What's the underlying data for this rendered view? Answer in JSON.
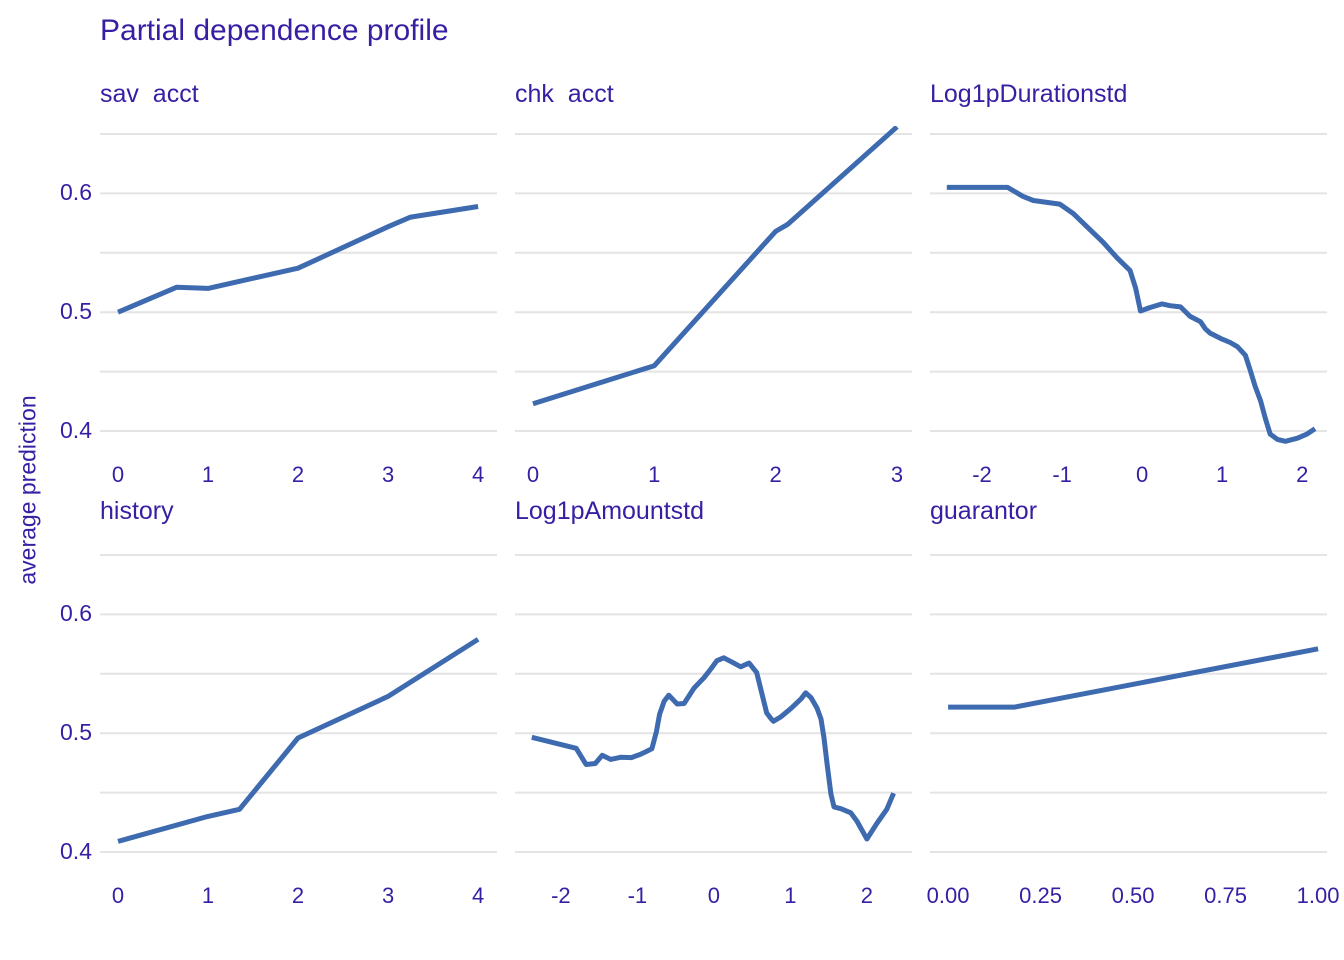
{
  "title": "Partial dependence profile",
  "y_axis_title": "average prediction",
  "colors": {
    "accent_text": "#371ea3",
    "line": "#3e6ab0",
    "grid": "#e4e4e4",
    "background": "#ffffff"
  },
  "axes": {
    "ylim": [
      0.379,
      0.6567
    ],
    "grid_y": [
      0.4,
      0.45,
      0.5,
      0.55,
      0.6,
      0.65
    ],
    "yticks": [
      {
        "value": 0.6,
        "label": "0.6"
      },
      {
        "value": 0.5,
        "label": "0.5"
      },
      {
        "value": 0.4,
        "label": "0.4"
      }
    ],
    "grid_on": true
  },
  "chart_data": [
    {
      "type": "line",
      "title": "sav  acct",
      "xlim": [
        -0.2,
        4.21
      ],
      "xticks": [
        {
          "value": 0,
          "label": "0"
        },
        {
          "value": 1,
          "label": "1"
        },
        {
          "value": 2,
          "label": "2"
        },
        {
          "value": 3,
          "label": "3"
        },
        {
          "value": 4,
          "label": "4"
        }
      ],
      "x": [
        0,
        0.65,
        1,
        2,
        3,
        3.25,
        4
      ],
      "y": [
        0.5,
        0.521,
        0.52,
        0.537,
        0.572,
        0.58,
        0.589
      ]
    },
    {
      "type": "line",
      "title": "chk  acct",
      "xlim": [
        -0.148,
        3.124
      ],
      "xticks": [
        {
          "value": 0,
          "label": "0"
        },
        {
          "value": 1,
          "label": "1"
        },
        {
          "value": 2,
          "label": "2"
        },
        {
          "value": 3,
          "label": "3"
        }
      ],
      "x": [
        0,
        1,
        2,
        2.1,
        3
      ],
      "y": [
        0.423,
        0.455,
        0.568,
        0.574,
        0.656
      ]
    },
    {
      "type": "line",
      "title": "Log1pDurationstd",
      "xlim": [
        -2.65,
        2.31
      ],
      "xticks": [
        {
          "value": -2,
          "label": "-2"
        },
        {
          "value": -1,
          "label": "-1"
        },
        {
          "value": 0,
          "label": "0"
        },
        {
          "value": 1,
          "label": "1"
        },
        {
          "value": 2,
          "label": "2"
        }
      ],
      "x": [
        -2.44,
        -1.68,
        -1.49,
        -1.36,
        -1.03,
        -0.86,
        -0.69,
        -0.49,
        -0.31,
        -0.15,
        -0.08,
        -0.02,
        0.1,
        0.25,
        0.35,
        0.48,
        0.6,
        0.73,
        0.79,
        0.85,
        0.98,
        1.1,
        1.19,
        1.29,
        1.35,
        1.41,
        1.48,
        1.54,
        1.6,
        1.69,
        1.79,
        1.94,
        2.06,
        2.16
      ],
      "y": [
        0.605,
        0.605,
        0.5975,
        0.594,
        0.591,
        0.583,
        0.572,
        0.559,
        0.5455,
        0.535,
        0.52,
        0.501,
        0.504,
        0.507,
        0.5055,
        0.5045,
        0.4965,
        0.492,
        0.486,
        0.4824,
        0.478,
        0.4745,
        0.471,
        0.4637,
        0.4513,
        0.438,
        0.4254,
        0.4105,
        0.3974,
        0.393,
        0.3914,
        0.394,
        0.3974,
        0.402
      ]
    },
    {
      "type": "line",
      "title": "history",
      "xlim": [
        -0.2,
        4.21
      ],
      "xticks": [
        {
          "value": 0,
          "label": "0"
        },
        {
          "value": 1,
          "label": "1"
        },
        {
          "value": 2,
          "label": "2"
        },
        {
          "value": 3,
          "label": "3"
        },
        {
          "value": 4,
          "label": "4"
        }
      ],
      "x": [
        0,
        1,
        1.35,
        2,
        3,
        4
      ],
      "y": [
        0.409,
        0.43,
        0.436,
        0.496,
        0.531,
        0.579
      ]
    },
    {
      "type": "line",
      "title": "Log1pAmountstd",
      "xlim": [
        -2.6,
        2.59
      ],
      "xticks": [
        {
          "value": -2,
          "label": "-2"
        },
        {
          "value": -1,
          "label": "-1"
        },
        {
          "value": 0,
          "label": "0"
        },
        {
          "value": 1,
          "label": "1"
        },
        {
          "value": 2,
          "label": "2"
        }
      ],
      "x": [
        -2.38,
        -1.8,
        -1.67,
        -1.55,
        -1.46,
        -1.35,
        -1.22,
        -1.08,
        -0.97,
        -0.88,
        -0.81,
        -0.75,
        -0.71,
        -0.65,
        -0.59,
        -0.48,
        -0.39,
        -0.26,
        -0.13,
        -0.04,
        0.04,
        0.13,
        0.26,
        0.35,
        0.46,
        0.56,
        0.69,
        0.75,
        0.78,
        0.88,
        1.01,
        1.14,
        1.2,
        1.27,
        1.35,
        1.4,
        1.44,
        1.48,
        1.53,
        1.57,
        1.66,
        1.79,
        1.87,
        2.0,
        2.13,
        2.26,
        2.35
      ],
      "y": [
        0.4966,
        0.4873,
        0.4737,
        0.4745,
        0.4814,
        0.478,
        0.4797,
        0.4795,
        0.482,
        0.4847,
        0.487,
        0.5017,
        0.516,
        0.527,
        0.532,
        0.5246,
        0.525,
        0.538,
        0.5466,
        0.554,
        0.561,
        0.5635,
        0.559,
        0.5559,
        0.559,
        0.551,
        0.517,
        0.512,
        0.51,
        0.514,
        0.521,
        0.529,
        0.534,
        0.53,
        0.521,
        0.512,
        0.496,
        0.474,
        0.449,
        0.438,
        0.4365,
        0.433,
        0.426,
        0.411,
        0.424,
        0.436,
        0.4495
      ]
    },
    {
      "type": "line",
      "title": "guarantor",
      "xlim": [
        -0.049,
        1.024
      ],
      "xticks": [
        {
          "value": 0,
          "label": "0.00"
        },
        {
          "value": 0.25,
          "label": "0.25"
        },
        {
          "value": 0.5,
          "label": "0.50"
        },
        {
          "value": 0.75,
          "label": "0.75"
        },
        {
          "value": 1,
          "label": "1.00"
        }
      ],
      "x": [
        0,
        0.18,
        1
      ],
      "y": [
        0.522,
        0.522,
        0.571
      ]
    }
  ]
}
